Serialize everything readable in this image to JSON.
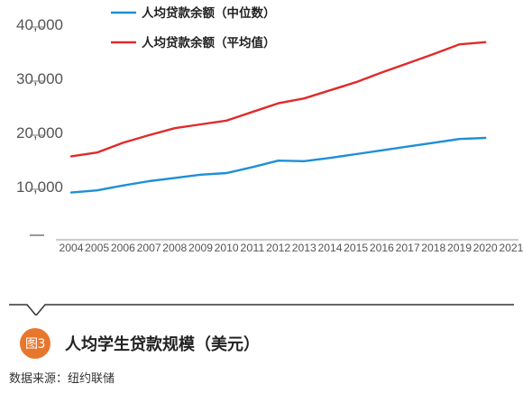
{
  "chart_data": {
    "type": "line",
    "x": [
      2004,
      2005,
      2006,
      2007,
      2008,
      2009,
      2010,
      2011,
      2012,
      2013,
      2014,
      2015,
      2016,
      2017,
      2018,
      2019,
      2020,
      2021
    ],
    "x_tick_labels": [
      "2004",
      "2005",
      "2006",
      "2007",
      "2008",
      "2009",
      "2010",
      "2011",
      "2012",
      "2013",
      "2014",
      "2015",
      "2016",
      "2017",
      "2018",
      "2019",
      "2020",
      "2021"
    ],
    "y_tick_values": [
      10000,
      20000,
      30000,
      40000
    ],
    "y_tick_labels": [
      "10,000",
      "20,000",
      "30,000",
      "40,000"
    ],
    "ylim": [
      0,
      40000
    ],
    "grid": false,
    "legend_position": "top-left",
    "series": [
      {
        "name": "人均贷款余额（中位数）",
        "color": "#1f8fd6",
        "x": [
          2004,
          2005,
          2006,
          2007,
          2008,
          2009,
          2010,
          2011,
          2012,
          2013,
          2014,
          2015,
          2016,
          2017,
          2018,
          2019,
          2020
        ],
        "values": [
          8900,
          9300,
          10200,
          11000,
          11600,
          12200,
          12500,
          13600,
          14800,
          14700,
          15300,
          16000,
          16700,
          17400,
          18100,
          18800,
          19000
        ]
      },
      {
        "name": "人均贷款余额（平均值）",
        "color": "#e02a2a",
        "x": [
          2004,
          2005,
          2006,
          2007,
          2008,
          2009,
          2010,
          2011,
          2012,
          2013,
          2014,
          2015,
          2016,
          2017,
          2018,
          2019,
          2020
        ],
        "values": [
          15600,
          16300,
          18100,
          19500,
          20800,
          21500,
          22200,
          23800,
          25400,
          26300,
          27800,
          29300,
          31100,
          32800,
          34500,
          36300,
          36700
        ]
      }
    ]
  },
  "caption": {
    "badge": "图3",
    "title": "人均学生贷款规模（美元）"
  },
  "source": "数据来源：纽约联储"
}
